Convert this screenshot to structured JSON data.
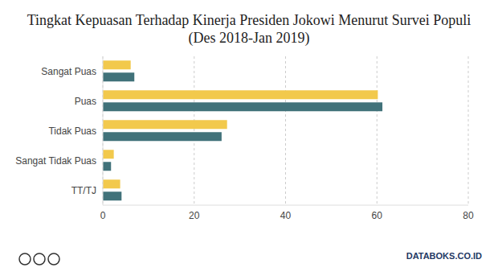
{
  "chart_data": {
    "type": "bar",
    "title": "Tingkat Kepuasan Terhadap Kinerja Presiden Jokowi Menurut Survei Populi (Des 2018-Jan 2019)",
    "orientation": "horizontal",
    "categories": [
      "Sangat Puas",
      "Puas",
      "Tidak Puas",
      "Sangat Tidak Puas",
      "TT/TJ"
    ],
    "series": [
      {
        "color": "#f2c94c",
        "values": [
          6.1,
          60.2,
          27.2,
          2.4,
          3.8
        ]
      },
      {
        "color": "#41727a",
        "values": [
          6.9,
          61.2,
          26.0,
          1.8,
          4.1
        ]
      }
    ],
    "xlim": [
      0,
      80
    ],
    "xticks": [
      0,
      20,
      40,
      60,
      80
    ],
    "grid": true,
    "footer": "DATABOKS.CO.ID"
  }
}
